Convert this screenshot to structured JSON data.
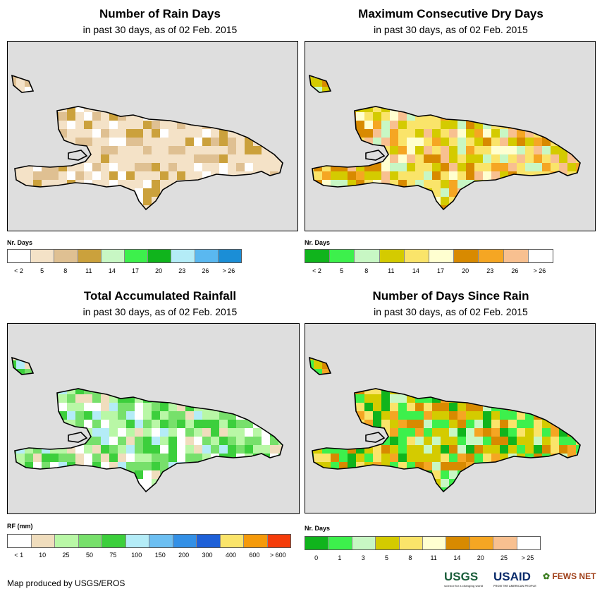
{
  "panels": [
    {
      "id": "rain_days",
      "title": "Number of Rain Days",
      "subtitle": "in past 30 days, as of 02 Feb. 2015",
      "legend_title": "Nr. Days",
      "legend_colors": [
        "#ffffff",
        "#f4e2c7",
        "#dfc092",
        "#cba13c",
        "#c8f7c4",
        "#3df04c",
        "#10b41c",
        "#b4ecf7",
        "#5ab8f0",
        "#1b8ed6"
      ],
      "legend_labels": [
        "< 2",
        "5",
        "8",
        "11",
        "14",
        "17",
        "20",
        "23",
        "26",
        "> 26"
      ]
    },
    {
      "id": "max_dry_days",
      "title": "Maximum Consecutive Dry Days",
      "subtitle": "in past 30 days, as of 02 Feb. 2015",
      "legend_title": "Nr. Days",
      "legend_colors": [
        "#10b41c",
        "#3df04c",
        "#c8f7c4",
        "#d4cb00",
        "#fae46a",
        "#ffffd0",
        "#d88a00",
        "#f5a623",
        "#f8c090",
        "#ffffff"
      ],
      "legend_labels": [
        "< 2",
        "5",
        "8",
        "11",
        "14",
        "17",
        "20",
        "23",
        "26",
        "> 26"
      ]
    },
    {
      "id": "total_rainfall",
      "title": "Total Accumulated Rainfall",
      "subtitle": "in past 30 days, as of 02 Feb. 2015",
      "legend_title": "RF (mm)",
      "legend_colors": [
        "#ffffff",
        "#f0ddbd",
        "#b9f7a6",
        "#77e06b",
        "#3ccf3c",
        "#b4ecf7",
        "#6cbff2",
        "#3390e6",
        "#1e60d8",
        "#fae46a",
        "#f59a0a",
        "#f53c0a"
      ],
      "legend_labels": [
        "< 1",
        "10",
        "25",
        "50",
        "75",
        "100",
        "150",
        "200",
        "300",
        "400",
        "600",
        "> 600"
      ]
    },
    {
      "id": "days_since_rain",
      "title": "Number of Days Since Rain",
      "subtitle": "in past 30 days, as of 02 Feb. 2015",
      "legend_title": "Nr. Days",
      "legend_colors": [
        "#10b41c",
        "#3df04c",
        "#c8f7c4",
        "#d4cb00",
        "#fae46a",
        "#ffffd0",
        "#d88a00",
        "#f5a623",
        "#f8c090",
        "#ffffff"
      ],
      "legend_labels": [
        "0",
        "1",
        "3",
        "5",
        "8",
        "11",
        "14",
        "20",
        "25",
        "> 25"
      ]
    }
  ],
  "footer": "Map produced by USGS/EROS",
  "logos": {
    "usgs": "USGS",
    "usgs_tagline": "science for a changing world",
    "usaid": "USAID",
    "usaid_tagline": "FROM THE AMERICAN PEOPLE",
    "fews": "FEWS NET"
  }
}
